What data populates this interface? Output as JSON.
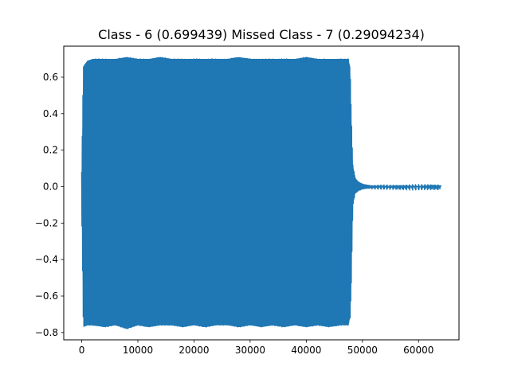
{
  "chart_data": {
    "type": "line",
    "title": "Class - 6 (0.699439) Missed Class - 7 (0.29094234)",
    "xlabel": "",
    "ylabel": "",
    "xlim": [
      -3200,
      67200
    ],
    "ylim": [
      -0.84,
      0.77
    ],
    "x_ticks": [
      0,
      10000,
      20000,
      30000,
      40000,
      50000,
      60000
    ],
    "x_tick_labels": [
      "0",
      "10000",
      "20000",
      "30000",
      "40000",
      "50000",
      "60000"
    ],
    "y_ticks": [
      -0.8,
      -0.6,
      -0.4,
      -0.2,
      0.0,
      0.2,
      0.4,
      0.6
    ],
    "y_tick_labels": [
      "−0.8",
      "−0.6",
      "−0.4",
      "−0.2",
      "0.0",
      "0.2",
      "0.4",
      "0.6"
    ],
    "grid": false,
    "legend": "none",
    "series": [
      {
        "color": "#1f77b4",
        "envelope": {
          "x": [
            0,
            300,
            1000,
            2000,
            4000,
            6000,
            8000,
            10000,
            12000,
            14000,
            16000,
            18000,
            20000,
            22000,
            24000,
            26000,
            28000,
            30000,
            32000,
            34000,
            36000,
            38000,
            40000,
            42000,
            44000,
            46000,
            47500,
            47800,
            48000,
            48300,
            48700,
            49200,
            50000,
            51000,
            52000,
            54000,
            56000,
            58000,
            60000,
            62000,
            64000
          ],
          "upper": [
            0.08,
            0.66,
            0.69,
            0.7,
            0.7,
            0.7,
            0.71,
            0.7,
            0.7,
            0.71,
            0.7,
            0.7,
            0.7,
            0.7,
            0.7,
            0.7,
            0.71,
            0.7,
            0.7,
            0.7,
            0.7,
            0.7,
            0.71,
            0.7,
            0.7,
            0.7,
            0.7,
            0.66,
            0.4,
            0.12,
            0.05,
            0.03,
            0.015,
            0.01,
            0.006,
            0.004,
            0.003,
            0.002,
            0.002,
            0.001,
            0.001
          ],
          "lower": [
            -0.1,
            -0.77,
            -0.76,
            -0.76,
            -0.77,
            -0.76,
            -0.78,
            -0.76,
            -0.77,
            -0.76,
            -0.76,
            -0.77,
            -0.76,
            -0.77,
            -0.76,
            -0.76,
            -0.77,
            -0.76,
            -0.77,
            -0.76,
            -0.77,
            -0.76,
            -0.77,
            -0.76,
            -0.77,
            -0.76,
            -0.76,
            -0.72,
            -0.55,
            -0.1,
            -0.04,
            -0.025,
            -0.015,
            -0.01,
            -0.006,
            -0.004,
            -0.003,
            -0.002,
            -0.002,
            -0.001,
            -0.001
          ]
        }
      }
    ]
  }
}
